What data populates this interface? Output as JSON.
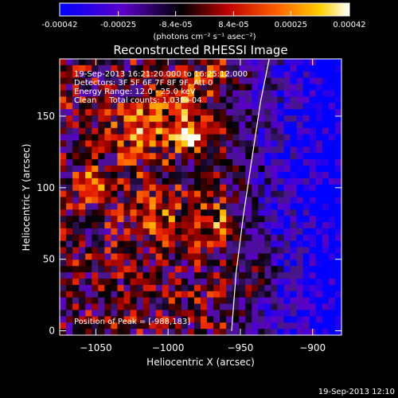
{
  "colorbar": {
    "tick_labels": [
      "-0.00042",
      "-0.00025",
      "-8.4e-05",
      "8.4e-05",
      "0.00025",
      "0.00042"
    ],
    "tick_values": [
      -0.00042,
      -0.00025,
      -8.4e-05,
      8.4e-05,
      0.00025,
      0.00042
    ],
    "range": [
      -0.00042,
      0.00042
    ],
    "units_label": "(photons cm⁻² s⁻¹ asec⁻²)"
  },
  "chart_data": {
    "type": "heatmap",
    "title": "Reconstructed RHESSI Image",
    "xlabel": "Heliocentric X (arcsec)",
    "ylabel": "Heliocentric Y (arcsec)",
    "xlim": [
      -1075,
      -880
    ],
    "ylim": [
      -3,
      190
    ],
    "x_ticks": [
      -1050,
      -1000,
      -950,
      -900
    ],
    "x_tick_labels": [
      "−1050",
      "−1000",
      "−950",
      "−900"
    ],
    "y_ticks": [
      0,
      50,
      100,
      150
    ],
    "y_tick_labels": [
      "0",
      "50",
      "100",
      "150"
    ],
    "annotations": [
      "19-Sep-2013 16:21:20.000 to 16:25:12.000",
      "Detectors: 3F 5F 6F 7F 8F 9F, Att 0",
      "Energy Range: 12.0 - 25.0 keV",
      "Clean     Total counts: 1.03E+04"
    ],
    "peak_label": "Position of Peak = [-988,183]",
    "peak_position": [
      -988,
      183
    ],
    "colormap": [
      "#0000ff",
      "#6a0dad",
      "#000000",
      "#ff0000",
      "#ffa500",
      "#ffffff"
    ],
    "limb_curve": {
      "x": [
        -956,
        -953,
        -948,
        -942,
        -936,
        -930
      ],
      "y": [
        0,
        40,
        80,
        120,
        160,
        190
      ]
    }
  },
  "footer": {
    "timestamp": "19-Sep-2013 12:10"
  }
}
